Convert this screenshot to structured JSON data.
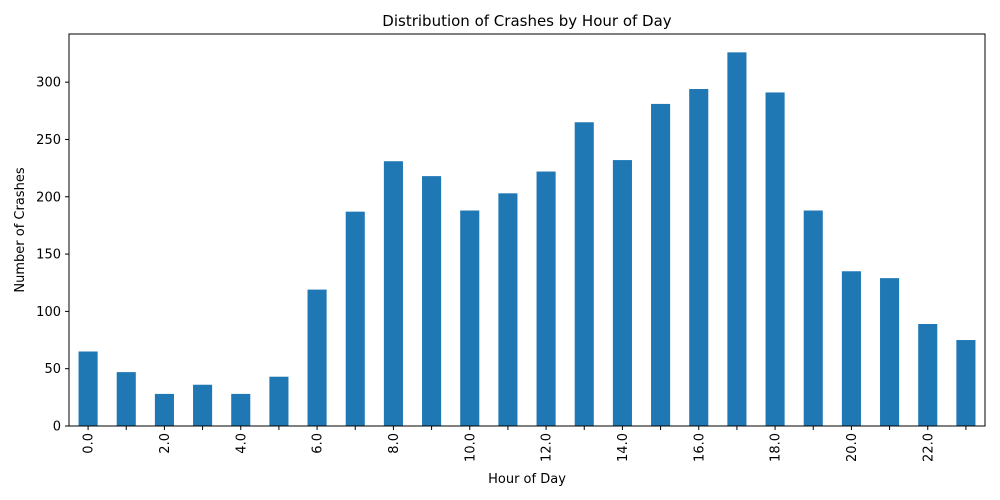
{
  "chart_data": {
    "type": "bar",
    "title": "Distribution of Crashes by Hour of Day",
    "xlabel": "Hour of Day",
    "ylabel": "Number of Crashes",
    "categories": [
      "0.0",
      "1.0",
      "2.0",
      "3.0",
      "4.0",
      "5.0",
      "6.0",
      "7.0",
      "8.0",
      "9.0",
      "10.0",
      "11.0",
      "12.0",
      "13.0",
      "14.0",
      "15.0",
      "16.0",
      "17.0",
      "18.0",
      "19.0",
      "20.0",
      "21.0",
      "22.0",
      "23.0"
    ],
    "x_tick_labels": [
      "0.0",
      "2.0",
      "4.0",
      "6.0",
      "8.0",
      "10.0",
      "12.0",
      "14.0",
      "16.0",
      "18.0",
      "20.0",
      "22.0"
    ],
    "values": [
      65,
      47,
      28,
      36,
      28,
      43,
      119,
      187,
      231,
      218,
      188,
      203,
      222,
      265,
      232,
      281,
      294,
      326,
      291,
      188,
      135,
      129,
      89,
      75
    ],
    "ylim": [
      0,
      342
    ],
    "y_ticks": [
      0,
      50,
      100,
      150,
      200,
      250,
      300
    ],
    "bar_color": "#1f77b4",
    "grid": false,
    "x_tick_rotation": "vertical"
  }
}
